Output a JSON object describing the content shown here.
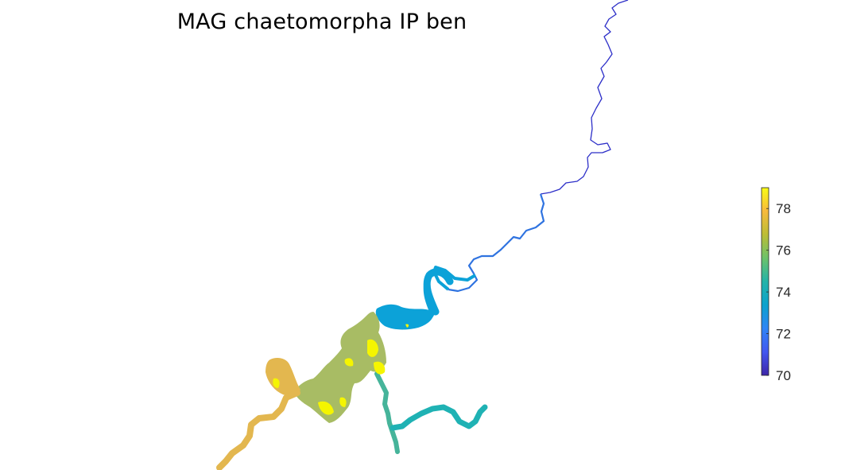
{
  "title": "MAG chaetomorpha IP ben",
  "colorbar": {
    "min": 70,
    "max": 79,
    "ticks": [
      {
        "value": 70,
        "label": "70"
      },
      {
        "value": 72,
        "label": "72"
      },
      {
        "value": 74,
        "label": "74"
      },
      {
        "value": 76,
        "label": "76"
      },
      {
        "value": 78,
        "label": "78"
      }
    ],
    "colormap": [
      "#3e26a8",
      "#4257f0",
      "#2f85f6",
      "#0ca2cd",
      "#24b3a8",
      "#6cc26a",
      "#bcbd36",
      "#f7ba3c",
      "#f9fb14"
    ]
  },
  "map_layers": {
    "upper_river_color": "#2c2ec8",
    "mid_river_color": "#2f73e0",
    "basin_color": "#0ca2d8",
    "estuary_color": "#a8bc64",
    "highlight_color": "#f5f500",
    "west_arm_color": "#e3b74f",
    "south_arm_color": "#46b49a",
    "east_arm_color": "#1fb2b4"
  }
}
